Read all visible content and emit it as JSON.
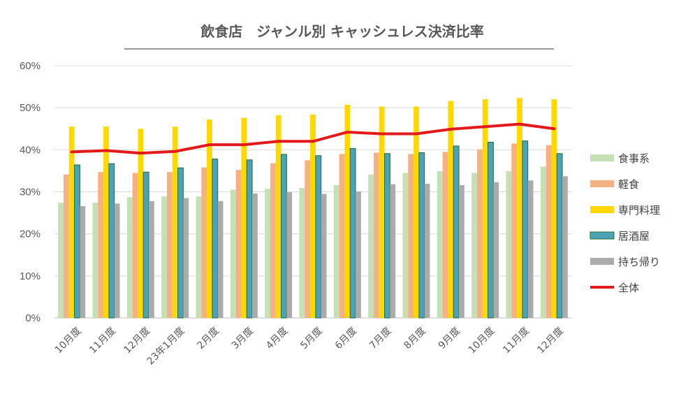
{
  "chart_data": {
    "type": "bar",
    "title": "飲食店　ジャンル別 キャッシュレス決済比率",
    "xlabel": "",
    "ylabel": "",
    "ylim": [
      0,
      0.6
    ],
    "yticks": [
      0,
      0.1,
      0.2,
      0.3,
      0.4,
      0.5,
      0.6
    ],
    "ytick_labels": [
      "0%",
      "10%",
      "20%",
      "30%",
      "40%",
      "50%",
      "60%"
    ],
    "grid": true,
    "legend_position": "right",
    "categories": [
      "10月度",
      "11月度",
      "12月度",
      "23年1月度",
      "2月度",
      "3月度",
      "4月度",
      "5月度",
      "6月度",
      "7月度",
      "8月度",
      "9月度",
      "10月度",
      "11月度",
      "12月度"
    ],
    "series": [
      {
        "name": "食事系",
        "type": "bar",
        "color": "#C5E0B4",
        "values": [
          0.274,
          0.274,
          0.287,
          0.289,
          0.289,
          0.305,
          0.307,
          0.309,
          0.316,
          0.341,
          0.345,
          0.349,
          0.345,
          0.349,
          0.36
        ]
      },
      {
        "name": "軽食",
        "type": "bar",
        "color": "#F4B183",
        "values": [
          0.341,
          0.347,
          0.345,
          0.347,
          0.358,
          0.352,
          0.368,
          0.375,
          0.39,
          0.393,
          0.39,
          0.395,
          0.401,
          0.415,
          0.411
        ]
      },
      {
        "name": "専門料理",
        "type": "bar",
        "color": "#FFD800",
        "values": [
          0.455,
          0.455,
          0.45,
          0.455,
          0.472,
          0.476,
          0.482,
          0.484,
          0.507,
          0.503,
          0.503,
          0.516,
          0.52,
          0.523,
          0.52
        ]
      },
      {
        "name": "居酒屋",
        "type": "bar",
        "color": "#4BA3B5",
        "edge": "#1F6B3A",
        "values": [
          0.364,
          0.367,
          0.347,
          0.357,
          0.378,
          0.376,
          0.389,
          0.386,
          0.403,
          0.391,
          0.393,
          0.409,
          0.418,
          0.421,
          0.391
        ]
      },
      {
        "name": "持ち帰り",
        "type": "bar",
        "color": "#ABABAB",
        "values": [
          0.266,
          0.272,
          0.278,
          0.285,
          0.278,
          0.296,
          0.299,
          0.295,
          0.301,
          0.318,
          0.319,
          0.316,
          0.323,
          0.327,
          0.337
        ]
      },
      {
        "name": "全体",
        "type": "line",
        "color": "#E31A1C",
        "values": [
          0.395,
          0.398,
          0.392,
          0.396,
          0.412,
          0.412,
          0.42,
          0.42,
          0.442,
          0.438,
          0.438,
          0.449,
          0.455,
          0.461,
          0.45
        ]
      }
    ]
  }
}
